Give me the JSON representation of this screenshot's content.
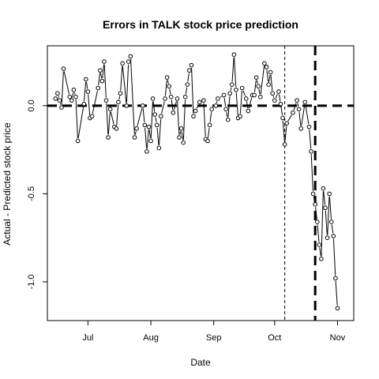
{
  "chart_data": {
    "type": "line",
    "title": "Errors in TALK stock price prediction",
    "xlabel": "Date",
    "ylabel": "Actual - Predicted stock price",
    "xlim": [
      "2021-06-11",
      "2021-11-09"
    ],
    "ylim": [
      -1.22,
      0.34
    ],
    "x_ticks": [
      {
        "label": "Jul",
        "date": "2021-07-01"
      },
      {
        "label": "Aug",
        "date": "2021-08-01"
      },
      {
        "label": "Sep",
        "date": "2021-09-01"
      },
      {
        "label": "Oct",
        "date": "2021-10-01"
      },
      {
        "label": "Nov",
        "date": "2021-11-01"
      }
    ],
    "y_ticks": [
      {
        "label": "-1.0",
        "value": -1.0
      },
      {
        "label": "-0.5",
        "value": -0.5
      },
      {
        "label": "0.0",
        "value": 0.0
      }
    ],
    "horizontal_reference": {
      "value": 0.0,
      "style": "dashed-thick"
    },
    "vertical_references": [
      {
        "date": "2021-10-06",
        "style": "dashed-thin"
      },
      {
        "date": "2021-10-21",
        "style": "dashed-thick"
      }
    ],
    "grid": false,
    "series": [
      {
        "points": [
          [
            "2021-06-15",
            0.04
          ],
          [
            "2021-06-16",
            0.07
          ],
          [
            "2021-06-17",
            0.03
          ],
          [
            "2021-06-18",
            -0.01
          ],
          [
            "2021-06-19",
            0.21
          ],
          [
            "2021-06-22",
            0.05
          ],
          [
            "2021-06-23",
            0.03
          ],
          [
            "2021-06-24",
            0.09
          ],
          [
            "2021-06-25",
            0.05
          ],
          [
            "2021-06-26",
            -0.2
          ],
          [
            "2021-06-29",
            0.01
          ],
          [
            "2021-06-30",
            0.15
          ],
          [
            "2021-07-01",
            0.08
          ],
          [
            "2021-07-02",
            -0.07
          ],
          [
            "2021-07-03",
            -0.06
          ],
          [
            "2021-07-06",
            0.1
          ],
          [
            "2021-07-07",
            0.2
          ],
          [
            "2021-07-08",
            0.14
          ],
          [
            "2021-07-09",
            0.25
          ],
          [
            "2021-07-10",
            0.03
          ],
          [
            "2021-07-11",
            -0.18
          ],
          [
            "2021-07-12",
            -0.02
          ],
          [
            "2021-07-14",
            -0.12
          ],
          [
            "2021-07-15",
            -0.13
          ],
          [
            "2021-07-16",
            0.02
          ],
          [
            "2021-07-17",
            0.07
          ],
          [
            "2021-07-18",
            0.24
          ],
          [
            "2021-07-20",
            0.0
          ],
          [
            "2021-07-21",
            0.25
          ],
          [
            "2021-07-22",
            0.28
          ],
          [
            "2021-07-24",
            -0.18
          ],
          [
            "2021-07-25",
            -0.13
          ],
          [
            "2021-07-28",
            0.0
          ],
          [
            "2021-07-29",
            -0.11
          ],
          [
            "2021-07-30",
            -0.26
          ],
          [
            "2021-07-31",
            -0.12
          ],
          [
            "2021-08-01",
            -0.2
          ],
          [
            "2021-08-02",
            0.04
          ],
          [
            "2021-08-03",
            -0.05
          ],
          [
            "2021-08-04",
            -0.11
          ],
          [
            "2021-08-05",
            -0.24
          ],
          [
            "2021-08-06",
            -0.06
          ],
          [
            "2021-08-08",
            0.04
          ],
          [
            "2021-08-09",
            0.16
          ],
          [
            "2021-08-10",
            0.11
          ],
          [
            "2021-08-11",
            0.05
          ],
          [
            "2021-08-12",
            -0.04
          ],
          [
            "2021-08-14",
            0.04
          ],
          [
            "2021-08-15",
            -0.18
          ],
          [
            "2021-08-16",
            -0.13
          ],
          [
            "2021-08-17",
            -0.21
          ],
          [
            "2021-08-18",
            0.05
          ],
          [
            "2021-08-19",
            0.12
          ],
          [
            "2021-08-20",
            0.2
          ],
          [
            "2021-08-21",
            0.23
          ],
          [
            "2021-08-22",
            -0.06
          ],
          [
            "2021-08-23",
            -0.03
          ],
          [
            "2021-08-25",
            0.02
          ],
          [
            "2021-08-27",
            0.03
          ],
          [
            "2021-08-28",
            -0.19
          ],
          [
            "2021-08-29",
            -0.2
          ],
          [
            "2021-08-30",
            -0.11
          ],
          [
            "2021-08-31",
            -0.02
          ],
          [
            "2021-09-02",
            0.0
          ],
          [
            "2021-09-03",
            0.04
          ],
          [
            "2021-09-06",
            0.06
          ],
          [
            "2021-09-07",
            -0.02
          ],
          [
            "2021-09-08",
            -0.08
          ],
          [
            "2021-09-09",
            0.07
          ],
          [
            "2021-09-10",
            0.12
          ],
          [
            "2021-09-11",
            0.29
          ],
          [
            "2021-09-12",
            0.09
          ],
          [
            "2021-09-13",
            -0.07
          ],
          [
            "2021-09-14",
            -0.06
          ],
          [
            "2021-09-15",
            0.1
          ],
          [
            "2021-09-17",
            0.04
          ],
          [
            "2021-09-18",
            -0.03
          ],
          [
            "2021-09-20",
            0.06
          ],
          [
            "2021-09-21",
            0.06
          ],
          [
            "2021-09-22",
            0.16
          ],
          [
            "2021-09-23",
            0.11
          ],
          [
            "2021-09-24",
            0.05
          ],
          [
            "2021-09-26",
            0.24
          ],
          [
            "2021-09-27",
            0.22
          ],
          [
            "2021-09-28",
            0.12
          ],
          [
            "2021-09-29",
            0.19
          ],
          [
            "2021-09-30",
            0.07
          ],
          [
            "2021-10-01",
            0.03
          ],
          [
            "2021-10-03",
            0.08
          ],
          [
            "2021-10-04",
            0.01
          ],
          [
            "2021-10-05",
            -0.07
          ],
          [
            "2021-10-06",
            -0.22
          ],
          [
            "2021-10-07",
            -0.1
          ],
          [
            "2021-10-10",
            -0.04
          ],
          [
            "2021-10-12",
            0.03
          ],
          [
            "2021-10-13",
            -0.02
          ],
          [
            "2021-10-14",
            -0.13
          ],
          [
            "2021-10-16",
            0.02
          ],
          [
            "2021-10-18",
            -0.12
          ],
          [
            "2021-10-19",
            -0.26
          ],
          [
            "2021-10-20",
            -0.5
          ],
          [
            "2021-10-21",
            -0.56
          ],
          [
            "2021-10-22",
            -0.66
          ],
          [
            "2021-10-23",
            -0.79
          ],
          [
            "2021-10-24",
            -0.87
          ],
          [
            "2021-10-25",
            -0.47
          ],
          [
            "2021-10-26",
            -0.58
          ],
          [
            "2021-10-27",
            -0.75
          ],
          [
            "2021-10-28",
            -0.5
          ],
          [
            "2021-10-29",
            -0.66
          ],
          [
            "2021-10-30",
            -0.74
          ],
          [
            "2021-10-31",
            -0.98
          ],
          [
            "2021-11-01",
            -1.15
          ]
        ]
      }
    ]
  }
}
